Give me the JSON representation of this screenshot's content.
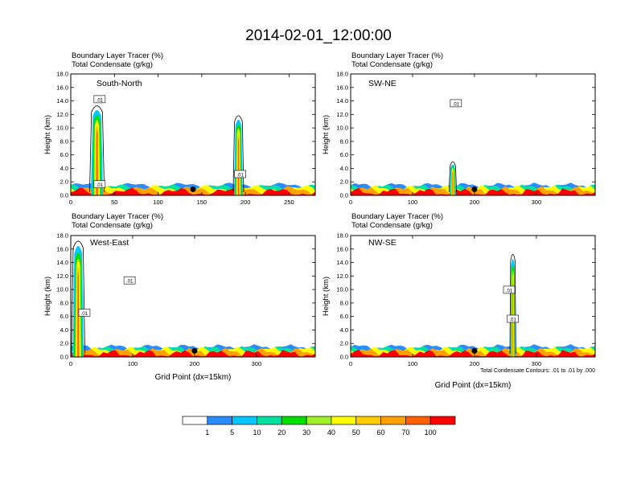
{
  "title": "2014-02-01_12:00:00",
  "colorbar": {
    "colors": [
      "#ffffff",
      "#2a8cff",
      "#00c8ff",
      "#00e0a0",
      "#00e000",
      "#a0f028",
      "#ffff00",
      "#ffcc00",
      "#ffa000",
      "#ff6000",
      "#ff0000"
    ],
    "labels": [
      "1",
      "5",
      "10",
      "20",
      "30",
      "40",
      "50",
      "60",
      "70",
      "100"
    ]
  },
  "contour_note": "Total Condensate Contours: .01 to .01 by .000",
  "chart_data": [
    {
      "type": "heatmap",
      "panel": "top-left",
      "subtitle1": "Boundary Layer Tracer   (%)",
      "subtitle2": "Total Condensate   (g/kg)",
      "label": "South-North",
      "ylabel": "Height (km)",
      "xlabel": "",
      "xlim": [
        0,
        280
      ],
      "ylim": [
        0,
        18
      ],
      "xticks": [
        "0",
        "50",
        "100",
        "150",
        "200",
        "250"
      ],
      "xtick_values": [
        0,
        50,
        100,
        150,
        200,
        250
      ],
      "yticks": [
        "0.0",
        "2.0",
        "4.0",
        "6.0",
        "8.0",
        "10.0",
        "12.0",
        "14.0",
        "16.0",
        "18.0"
      ],
      "ytick_values": [
        0,
        2,
        4,
        6,
        8,
        10,
        12,
        14,
        16,
        18
      ],
      "contour_labels": [
        {
          "text": ".01",
          "x": 33,
          "y": 14.2
        },
        {
          "text": ".01",
          "x": 194,
          "y": 3.1
        },
        {
          "text": ".01",
          "x": 33,
          "y": 1.6
        }
      ],
      "marker": {
        "x": 140,
        "y": 0.9
      },
      "plumes": [
        {
          "x": 30,
          "w": 14,
          "top": 13
        },
        {
          "x": 192,
          "w": 10,
          "top": 11.5
        }
      ]
    },
    {
      "type": "heatmap",
      "panel": "top-right",
      "subtitle1": "Boundary Layer Tracer   (%)",
      "subtitle2": "Total Condensate   (g/kg)",
      "label": "SW-NE",
      "ylabel": "Height (km)",
      "xlabel": "",
      "xlim": [
        0,
        395
      ],
      "ylim": [
        0,
        18
      ],
      "xticks": [
        "0",
        "100",
        "200",
        "300"
      ],
      "xtick_values": [
        0,
        100,
        200,
        300
      ],
      "yticks": [
        "0.0",
        "2.0",
        "4.0",
        "6.0",
        "8.0",
        "10.0",
        "12.0",
        "14.0",
        "16.0",
        "18.0"
      ],
      "ytick_values": [
        0,
        2,
        4,
        6,
        8,
        10,
        12,
        14,
        16,
        18
      ],
      "contour_labels": [
        {
          "text": ".01",
          "x": 170,
          "y": 13.6
        }
      ],
      "marker": {
        "x": 200,
        "y": 0.9
      },
      "plumes": [
        {
          "x": 165,
          "w": 10,
          "top": 4.5
        }
      ]
    },
    {
      "type": "heatmap",
      "panel": "bottom-left",
      "subtitle1": "Boundary Layer Tracer   (%)",
      "subtitle2": "Total Condensate   (g/kg)",
      "label": "West-East",
      "ylabel": "Height (km)",
      "xlabel": "Grid Point (dx=15km)",
      "xlim": [
        0,
        395
      ],
      "ylim": [
        0,
        18
      ],
      "xticks": [
        "0",
        "100",
        "200",
        "300"
      ],
      "xtick_values": [
        0,
        100,
        200,
        300
      ],
      "yticks": [
        "0.0",
        "2.0",
        "4.0",
        "6.0",
        "8.0",
        "10.0",
        "12.0",
        "14.0",
        "16.0",
        "18.0"
      ],
      "ytick_values": [
        0,
        2,
        4,
        6,
        8,
        10,
        12,
        14,
        16,
        18
      ],
      "contour_labels": [
        {
          "text": ".01",
          "x": 95,
          "y": 11.3
        },
        {
          "text": ".01",
          "x": 22,
          "y": 6.5
        }
      ],
      "marker": {
        "x": 200,
        "y": 0.9
      },
      "plumes": [
        {
          "x": 12,
          "w": 18,
          "top": 17
        }
      ]
    },
    {
      "type": "heatmap",
      "panel": "bottom-right",
      "subtitle1": "Boundary Layer Tracer   (%)",
      "subtitle2": "Total Condensate   (g/kg)",
      "label": "NW-SE",
      "ylabel": "Height (km)",
      "xlabel": "Grid Point (dx=15km)",
      "xlim": [
        0,
        395
      ],
      "ylim": [
        0,
        18
      ],
      "xticks": [
        "0",
        "100",
        "200",
        "300"
      ],
      "xtick_values": [
        0,
        100,
        200,
        300
      ],
      "yticks": [
        "0.0",
        "2.0",
        "4.0",
        "6.0",
        "8.0",
        "10.0",
        "12.0",
        "14.0",
        "16.0",
        "18.0"
      ],
      "ytick_values": [
        0,
        2,
        4,
        6,
        8,
        10,
        12,
        14,
        16,
        18
      ],
      "contour_labels": [
        {
          "text": ".01",
          "x": 256,
          "y": 9.9
        },
        {
          "text": ".01",
          "x": 262,
          "y": 5.6
        }
      ],
      "marker": {
        "x": 200,
        "y": 0.9
      },
      "plumes": [
        {
          "x": 262,
          "w": 8,
          "top": 15
        }
      ]
    }
  ]
}
